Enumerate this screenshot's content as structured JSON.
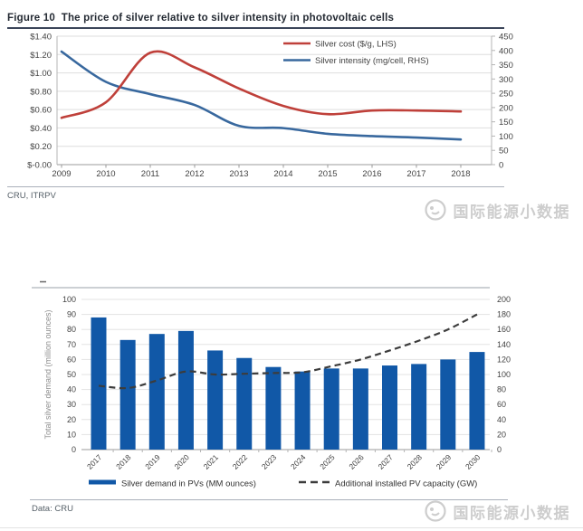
{
  "figure": {
    "title": "Figure 10  The price of silver relative to silver intensity in photovoltaic cells",
    "source": "CRU, ITRPV"
  },
  "figure2": {
    "source": "Data: CRU"
  },
  "watermark": {
    "text": "国际能源小数据"
  },
  "colors": {
    "silver_cost": "#bf403a",
    "silver_intensity": "#38689e",
    "bars": "#1158a7",
    "dashed_line": "#3c3c3c",
    "grid": "#dedede",
    "axis_line": "#9b9b9b",
    "axis_text": "#434343",
    "axis_title_gray": "#8f8f8f",
    "title_rule": "#3b4559",
    "watermark": "#cdcdcd"
  },
  "chart_data": [
    {
      "type": "line",
      "title": "The price of silver relative to silver intensity in photovoltaic cells",
      "x": [
        2009,
        2010,
        2011,
        2012,
        2013,
        2014,
        2015,
        2016,
        2017,
        2018
      ],
      "series": [
        {
          "name": "Silver cost ($/g, LHS)",
          "axis": "left",
          "color": "#bf403a",
          "values": [
            0.51,
            0.68,
            1.22,
            1.06,
            0.83,
            0.64,
            0.55,
            0.59,
            0.59,
            0.58
          ]
        },
        {
          "name": "Silver intensity (mg/cell, RHS)",
          "axis": "right",
          "color": "#38689e",
          "values": [
            396,
            290,
            247,
            209,
            136,
            128,
            108,
            100,
            95,
            88
          ]
        }
      ],
      "left_axis": {
        "min": 0,
        "max": 1.4,
        "step": 0.2,
        "format": "currency"
      },
      "right_axis": {
        "min": 0,
        "max": 450,
        "step": 50
      },
      "legend_position": "top-right",
      "grid": true
    },
    {
      "type": "bar",
      "categories": [
        2017,
        2018,
        2019,
        2020,
        2021,
        2022,
        2023,
        2024,
        2025,
        2026,
        2027,
        2028,
        2029,
        2030
      ],
      "series": [
        {
          "name": "Silver demand in PVs (MM ounces)",
          "type": "bar",
          "axis": "left",
          "color": "#1158a7",
          "values": [
            88,
            73,
            77,
            79,
            66,
            61,
            55,
            52,
            54,
            54,
            56,
            57,
            60,
            65
          ]
        },
        {
          "name": "Additional installed PV capacity (GW)",
          "type": "dashed-line",
          "axis": "right",
          "color": "#3c3c3c",
          "values": [
            85,
            82,
            92,
            104,
            100,
            101,
            102,
            103,
            111,
            120,
            132,
            145,
            160,
            180
          ]
        }
      ],
      "ylabel": "Total silver demand (million ounces)",
      "left_axis": {
        "min": 0,
        "max": 100,
        "step": 10
      },
      "right_axis": {
        "min": 0,
        "max": 200,
        "step": 20
      },
      "legend_position": "bottom",
      "grid": true
    }
  ]
}
